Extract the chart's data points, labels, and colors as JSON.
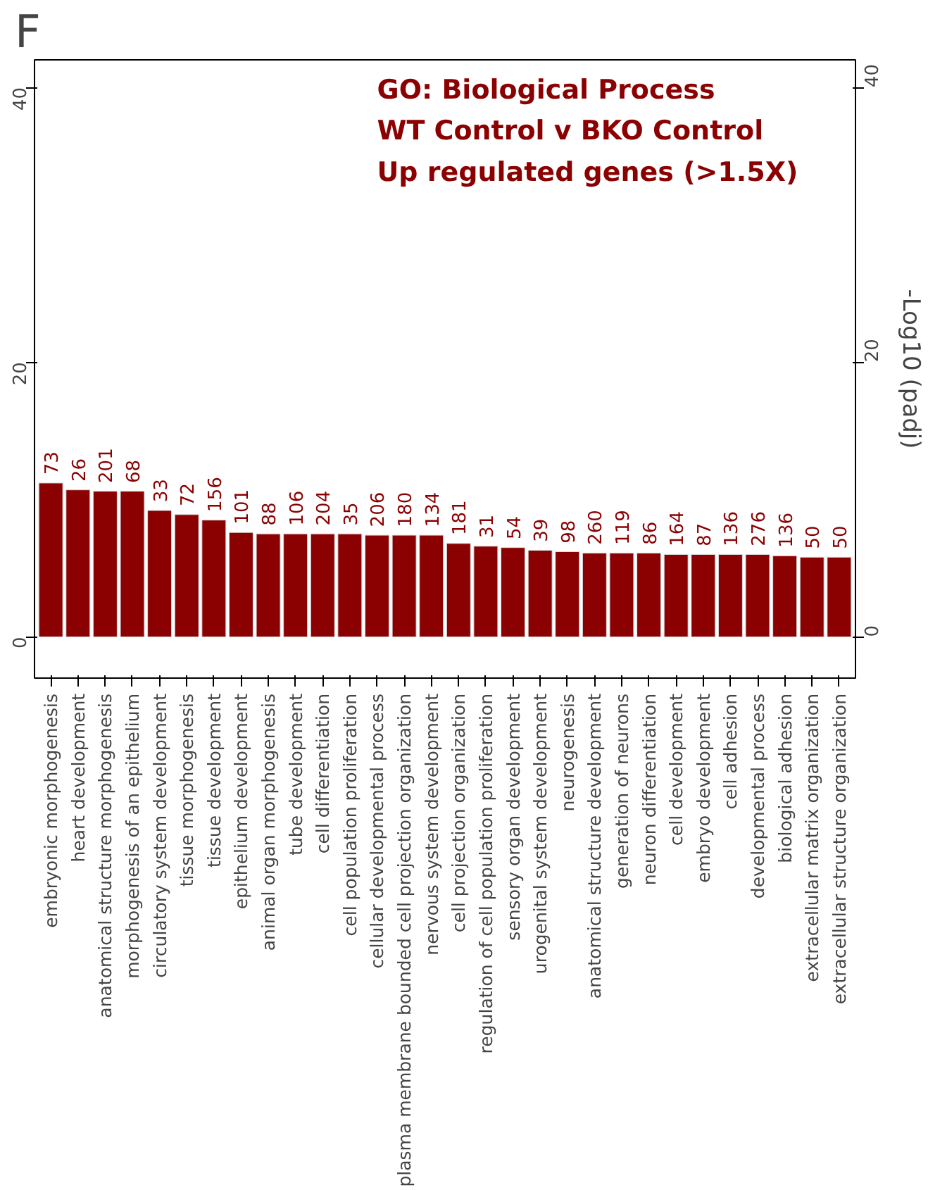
{
  "chart_data": {
    "type": "bar",
    "title": "GO: Biological Process\nWT Control v BKO Control\nUp regulated genes (>1.5X)",
    "y2label": "-Log10 (padj)",
    "annotations": [
      "F",
      {
        "text": "73",
        "x": "embryonic morphogenesis",
        "y": 11.2
      },
      {
        "text": "26",
        "x": "heart development",
        "y": 10.7
      },
      {
        "text": "201",
        "x": "anatomical structure morphogenesis",
        "y": 10.6
      },
      {
        "text": "68",
        "x": "morphogenesis of an epithelium",
        "y": 10.6
      },
      {
        "text": "33",
        "x": "circulatory system development",
        "y": 9.2
      },
      {
        "text": "72",
        "x": "tissue morphogenesis",
        "y": 8.9
      },
      {
        "text": "156",
        "x": "tissue development",
        "y": 8.5
      },
      {
        "text": "101",
        "x": "epithelium development",
        "y": 7.6
      },
      {
        "text": "88",
        "x": "animal organ morphogenesis",
        "y": 7.5
      },
      {
        "text": "106",
        "x": "tube development",
        "y": 7.5
      },
      {
        "text": "204",
        "x": "cell differentiation",
        "y": 7.5
      },
      {
        "text": "35",
        "x": "cell population proliferation",
        "y": 7.5
      },
      {
        "text": "206",
        "x": "cellular developmental process",
        "y": 7.4
      },
      {
        "text": "180",
        "x": "plasma membrane bounded cell projection organization",
        "y": 7.4
      },
      {
        "text": "134",
        "x": "nervous system development",
        "y": 7.4
      },
      {
        "text": "181",
        "x": "cell projection organization",
        "y": 6.8
      },
      {
        "text": "31",
        "x": "regulation of cell population proliferation",
        "y": 6.6
      },
      {
        "text": "54",
        "x": "sensory organ development",
        "y": 6.5
      },
      {
        "text": "39",
        "x": "urogenital system development",
        "y": 6.3
      },
      {
        "text": "98",
        "x": "neurogenesis",
        "y": 6.2
      },
      {
        "text": "260",
        "x": "anatomical structure development",
        "y": 6.1
      },
      {
        "text": "119",
        "x": "generation of neurons",
        "y": 6.1
      },
      {
        "text": "86",
        "x": "neuron differentiation",
        "y": 6.1
      },
      {
        "text": "164",
        "x": "cell development",
        "y": 6.0
      },
      {
        "text": "87",
        "x": "embryo development",
        "y": 6.0
      },
      {
        "text": "136",
        "x": "cell adhesion",
        "y": 6.0
      },
      {
        "text": "276",
        "x": "developmental process",
        "y": 6.0
      },
      {
        "text": "136",
        "x": "biological adhesion",
        "y": 5.9
      },
      {
        "text": "50",
        "x": "extracellular matrix organization",
        "y": 5.8
      },
      {
        "text": "50",
        "x": "extracellular structure organization",
        "y": 5.8
      }
    ],
    "categories": [
      "embryonic morphogenesis",
      "heart development",
      "anatomical structure morphogenesis",
      "morphogenesis of an epithelium",
      "circulatory system development",
      "tissue morphogenesis",
      "tissue development",
      "epithelium development",
      "animal organ morphogenesis",
      "tube development",
      "cell differentiation",
      "cell population proliferation",
      "cellular developmental process",
      "plasma membrane bounded cell projection organization",
      "nervous system development",
      "cell projection organization",
      "regulation of cell population proliferation",
      "sensory organ development",
      "urogenital system development",
      "neurogenesis",
      "anatomical structure development",
      "generation of neurons",
      "neuron differentiation",
      "cell development",
      "embryo development",
      "cell adhesion",
      "developmental process",
      "biological adhesion",
      "extracellular matrix organization",
      "extracellular structure organization"
    ],
    "values": [
      11.2,
      10.7,
      10.6,
      10.6,
      9.2,
      8.9,
      8.5,
      7.6,
      7.5,
      7.5,
      7.5,
      7.5,
      7.4,
      7.4,
      7.4,
      6.8,
      6.6,
      6.5,
      6.3,
      6.2,
      6.1,
      6.1,
      6.1,
      6.0,
      6.0,
      6.0,
      6.0,
      5.9,
      5.8,
      5.8
    ],
    "color": "#8b0000",
    "ylim": [
      -3,
      42
    ],
    "yticks": [
      0,
      20,
      40
    ],
    "y2lim": [
      -3,
      42
    ],
    "y2ticks": [
      0,
      20,
      40
    ],
    "grid": false
  }
}
